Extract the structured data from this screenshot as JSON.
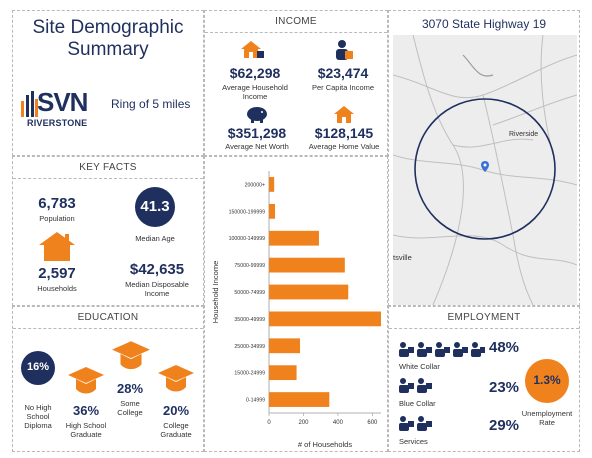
{
  "title": "Site Demographic\nSummary",
  "brand": {
    "logo_main": "SVN",
    "logo_sub": "RIVERSTONE",
    "ring": "Ring of 5 miles"
  },
  "income": {
    "header": "INCOME",
    "avg_household": {
      "value": "$62,298",
      "label": "Average Household Income"
    },
    "per_capita": {
      "value": "$23,474",
      "label": "Per Capita Income"
    },
    "net_worth": {
      "value": "$351,298",
      "label": "Average Net Worth"
    },
    "home_value": {
      "value": "$128,145",
      "label": "Average Home Value"
    }
  },
  "map": {
    "address": "3070 State Highway 19",
    "place_label": "Riverside",
    "town_label": "tsville"
  },
  "key_facts": {
    "header": "KEY FACTS",
    "population": {
      "value": "6,783",
      "label": "Population"
    },
    "median_age": {
      "value": "41.3",
      "label": "Median Age"
    },
    "households": {
      "value": "2,597",
      "label": "Households"
    },
    "median_disp_income": {
      "value": "$42,635",
      "label": "Median Disposable Income"
    }
  },
  "education": {
    "header": "EDUCATION",
    "no_hs": {
      "value": "16%",
      "label": "No High School Diploma"
    },
    "hs": {
      "value": "36%",
      "label": "High School Graduate"
    },
    "some_college": {
      "value": "28%",
      "label": "Some College"
    },
    "college": {
      "value": "20%",
      "label": "College Graduate"
    }
  },
  "employment": {
    "header": "EMPLOYMENT",
    "white_collar": {
      "value": "48%",
      "label": "White Collar"
    },
    "blue_collar": {
      "value": "23%",
      "label": "Blue Collar"
    },
    "services": {
      "value": "29%",
      "label": "Services"
    },
    "unemployment": {
      "value": "1.3%",
      "label": "Unemployment Rate"
    }
  },
  "chart_data": {
    "type": "bar",
    "orientation": "horizontal",
    "categories": [
      "200000+",
      "150000-199999",
      "100000-149999",
      "75000-99999",
      "50000-74999",
      "35000-49999",
      "25000-34999",
      "15000-24999",
      "0-14999"
    ],
    "values": [
      30,
      35,
      290,
      440,
      460,
      650,
      180,
      160,
      350
    ],
    "xlabel": "# of Households",
    "ylabel": "Household Income",
    "xlim": [
      0,
      650
    ],
    "xticks": [
      0,
      200,
      400,
      600
    ],
    "grid": false,
    "color": "#f0821e"
  },
  "colors": {
    "navy": "#1f2f5e",
    "orange": "#f0821e"
  }
}
